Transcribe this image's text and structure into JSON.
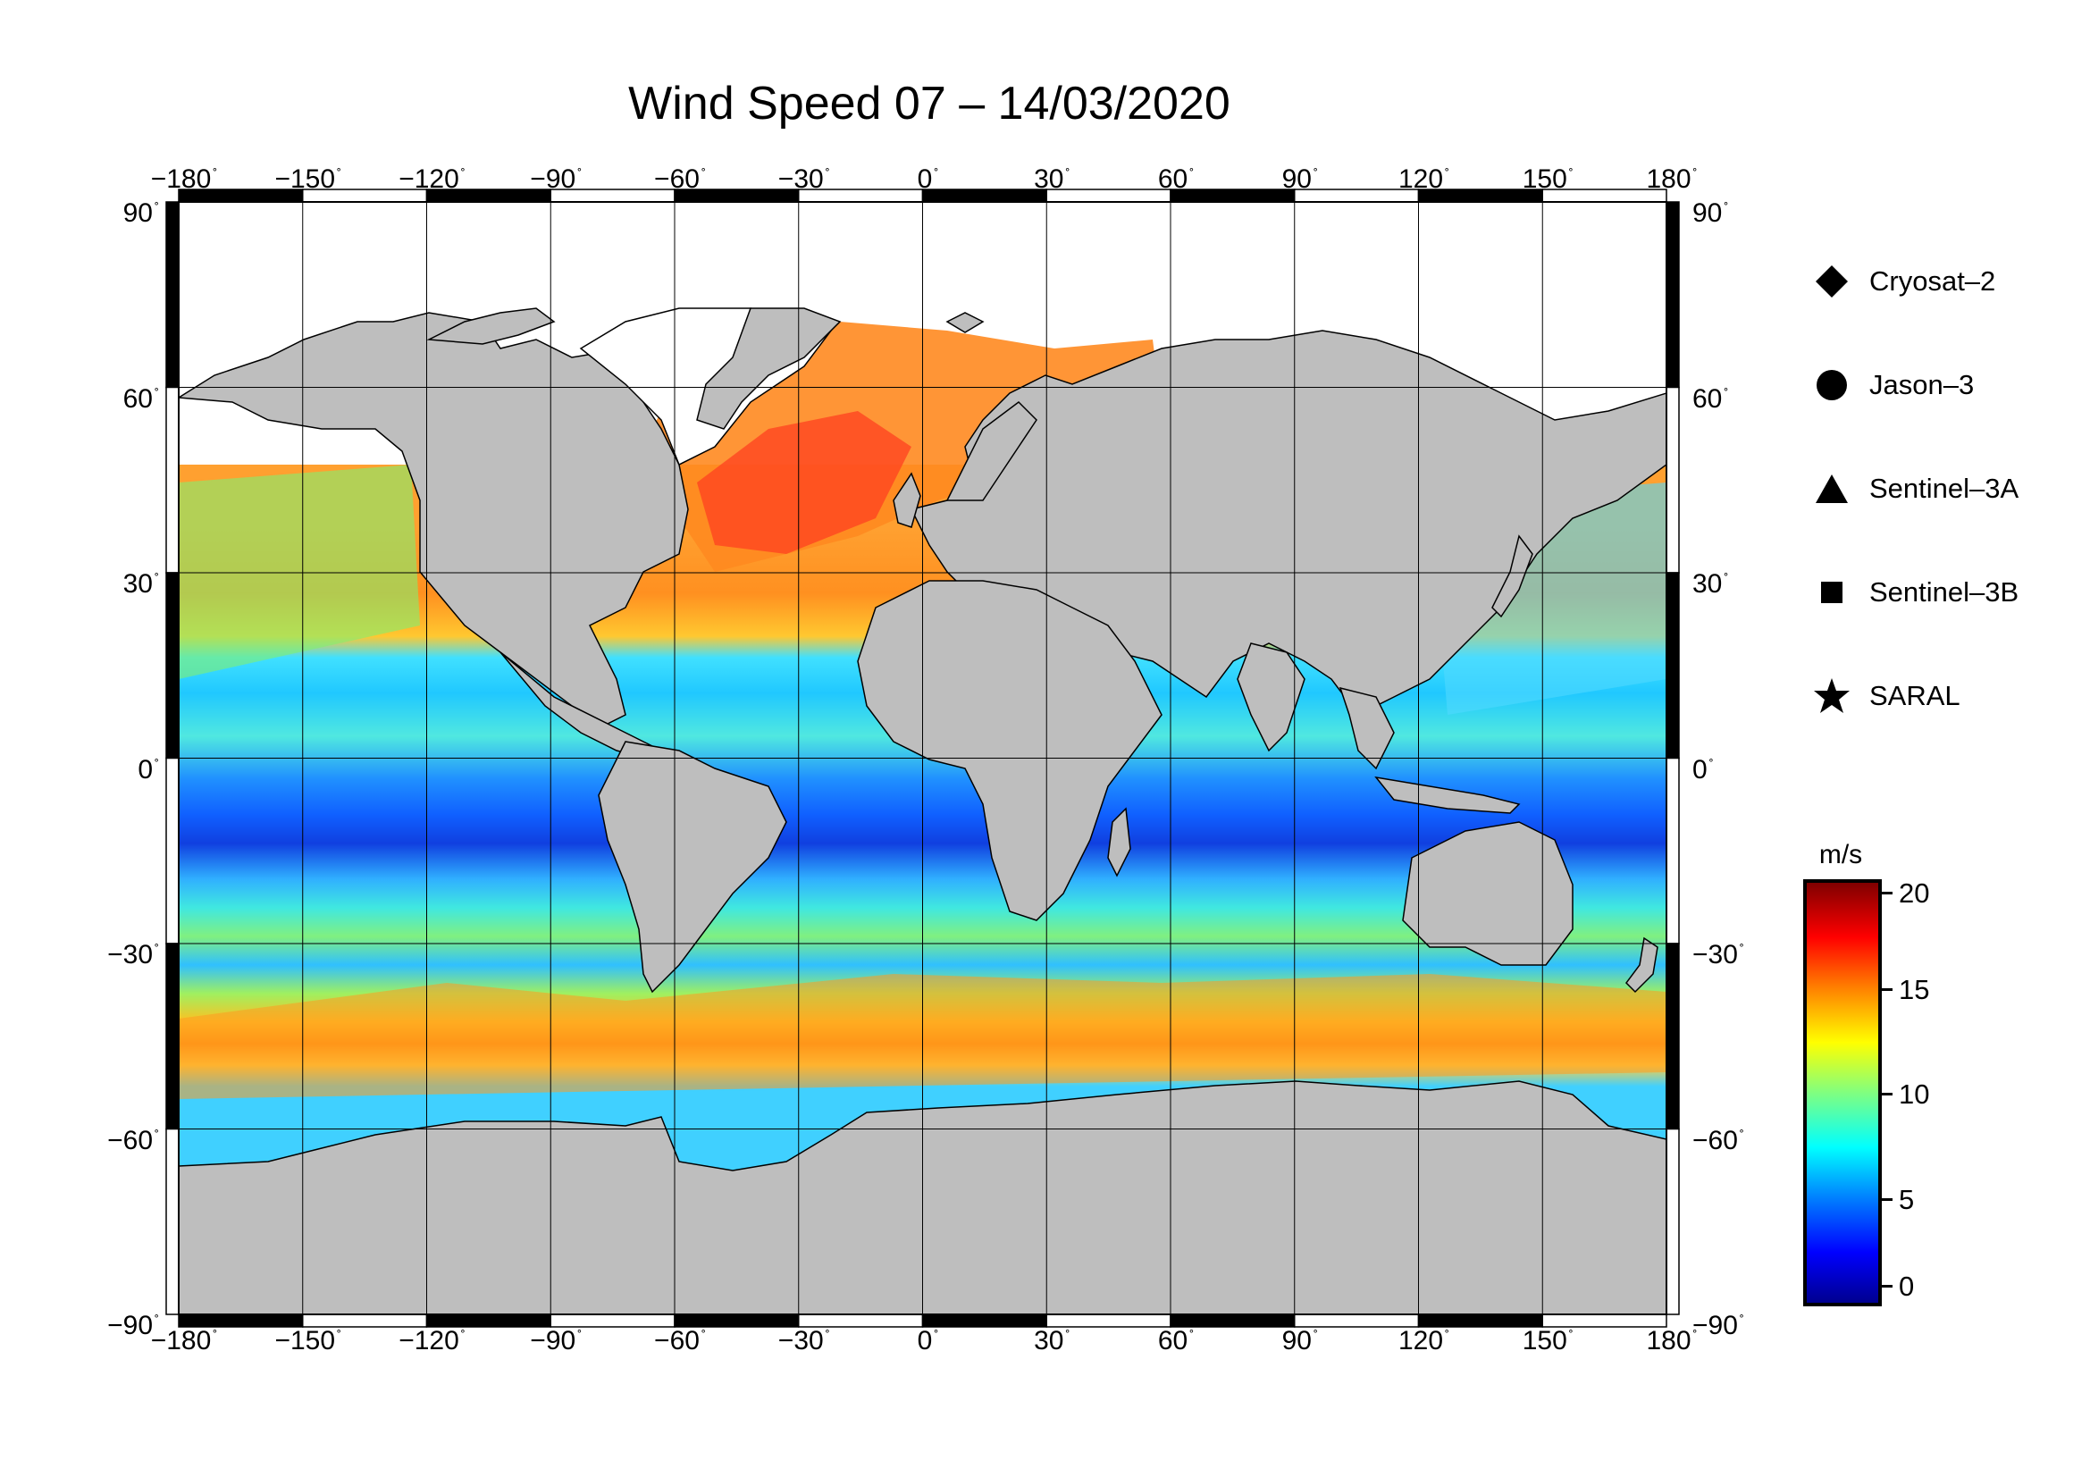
{
  "title": "Wind Speed 07 – 14/03/2020",
  "x_ticks": [
    "−180",
    "−150",
    "−120",
    "−90",
    "−60",
    "−30",
    "0",
    "30",
    "60",
    "90",
    "120",
    "150",
    "180"
  ],
  "y_ticks": [
    "90",
    "60",
    "30",
    "0",
    "−30",
    "−60",
    "−90"
  ],
  "degree_symbol": "˚",
  "legend": {
    "items": [
      {
        "label": "Cryosat–2",
        "icon": "diamond-icon"
      },
      {
        "label": "Jason–3",
        "icon": "circle-icon"
      },
      {
        "label": "Sentinel–3A",
        "icon": "triangle-icon"
      },
      {
        "label": "Sentinel–3B",
        "icon": "square-icon"
      },
      {
        "label": "SARAL",
        "icon": "star-icon"
      }
    ]
  },
  "colorbar": {
    "unit": "m/s",
    "ticks": [
      "20",
      "15",
      "10",
      "5",
      "0"
    ],
    "min": 0,
    "max": 20
  },
  "colors": {
    "land": "#bebebe",
    "ice": "#ffffff",
    "coast": "#000000",
    "grid": "#000000"
  }
}
